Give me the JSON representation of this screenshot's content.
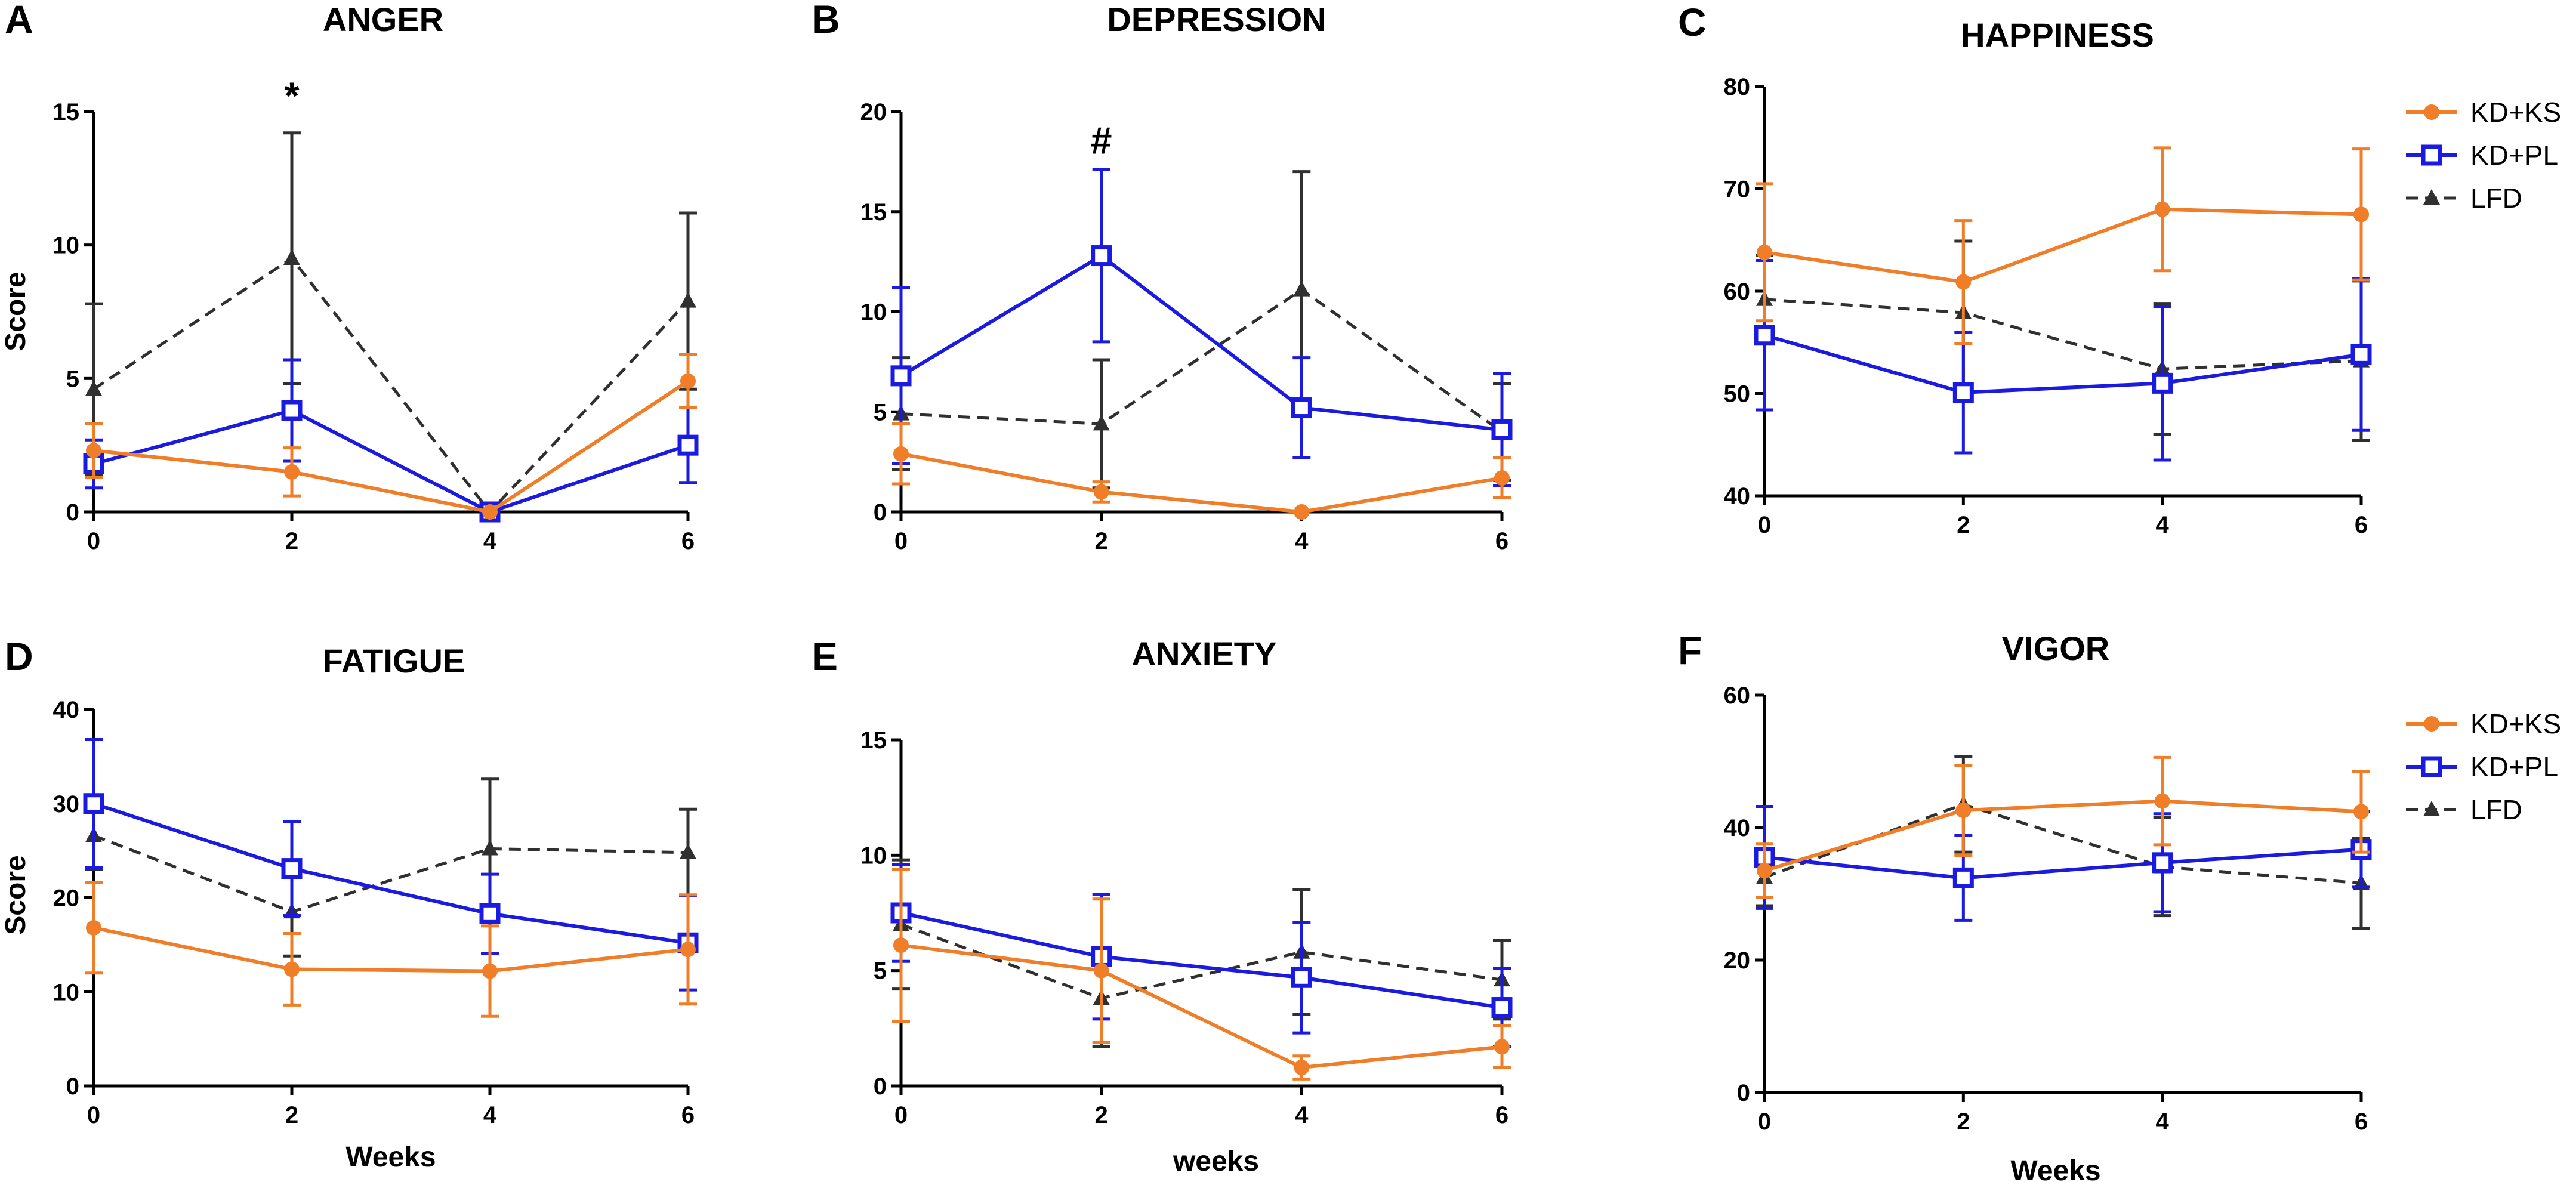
{
  "colors": {
    "KD+KS": "#f07d27",
    "KD+PL": "#1a1ae0",
    "LFD": "#303030"
  },
  "chart_data": [
    {
      "id": "A",
      "letter": "A",
      "type": "line",
      "title": "ANGER",
      "ylabel": "Score",
      "xlabel": "",
      "x": [
        0,
        2,
        4,
        6
      ],
      "xticks": [
        0,
        2,
        4,
        6
      ],
      "ylim": [
        0,
        15
      ],
      "yticks": [
        0,
        5,
        10,
        15
      ],
      "legend": [],
      "annotation": {
        "text": "*",
        "x": 2,
        "y": 15.1
      },
      "series": [
        {
          "name": "KD+KS",
          "values": [
            2.3,
            1.5,
            0,
            4.9
          ],
          "errors": [
            1.0,
            0.9,
            0,
            1.0
          ]
        },
        {
          "name": "KD+PL",
          "values": [
            1.8,
            3.8,
            0,
            2.5
          ],
          "errors": [
            0.9,
            1.9,
            0,
            1.4
          ]
        },
        {
          "name": "LFD",
          "values": [
            4.6,
            9.5,
            0,
            7.9
          ],
          "errors": [
            3.2,
            4.7,
            0,
            3.3
          ]
        }
      ]
    },
    {
      "id": "B",
      "letter": "B",
      "type": "line",
      "title": "DEPRESSION",
      "ylabel": "",
      "xlabel": "",
      "x": [
        0,
        2,
        4,
        6
      ],
      "xticks": [
        0,
        2,
        4,
        6
      ],
      "ylim": [
        0,
        20
      ],
      "yticks": [
        0,
        5,
        10,
        15,
        20
      ],
      "legend": [],
      "annotation": {
        "text": "#",
        "x": 2,
        "y": 17.9
      },
      "series": [
        {
          "name": "KD+KS",
          "values": [
            2.9,
            1.0,
            0,
            1.7
          ],
          "errors": [
            1.5,
            0.5,
            0,
            1.0
          ]
        },
        {
          "name": "KD+PL",
          "values": [
            6.8,
            12.8,
            5.2,
            4.1
          ],
          "errors": [
            4.4,
            4.3,
            2.5,
            2.8
          ]
        },
        {
          "name": "LFD",
          "values": [
            4.9,
            4.4,
            11.1,
            4.0
          ],
          "errors": [
            2.8,
            3.2,
            5.9,
            2.4
          ]
        }
      ]
    },
    {
      "id": "C",
      "letter": "C",
      "type": "line",
      "title": "HAPPINESS",
      "ylabel": "",
      "xlabel": "",
      "x": [
        0,
        2,
        4,
        6
      ],
      "xticks": [
        0,
        2,
        4,
        6
      ],
      "ylim": [
        40,
        80
      ],
      "yticks": [
        40,
        50,
        60,
        70,
        80
      ],
      "legend": [
        "KD+KS",
        "KD+PL",
        "LFD"
      ],
      "series": [
        {
          "name": "KD+KS",
          "values": [
            63.8,
            60.9,
            68.0,
            67.5
          ],
          "errors": [
            6.7,
            6.0,
            6.0,
            6.4
          ]
        },
        {
          "name": "KD+PL",
          "values": [
            55.7,
            50.1,
            51.0,
            53.8
          ],
          "errors": [
            7.3,
            5.9,
            7.5,
            7.4
          ]
        },
        {
          "name": "LFD",
          "values": [
            59.2,
            57.9,
            52.4,
            53.2
          ],
          "errors": [
            4.3,
            7.0,
            6.4,
            7.8
          ]
        }
      ]
    },
    {
      "id": "D",
      "letter": "D",
      "type": "line",
      "title": "FATIGUE",
      "ylabel": "Score",
      "xlabel": "Weeks",
      "x": [
        0,
        2,
        4,
        6
      ],
      "xticks": [
        0,
        2,
        4,
        6
      ],
      "ylim": [
        0,
        40
      ],
      "yticks": [
        0,
        10,
        20,
        30,
        40
      ],
      "legend": [],
      "series": [
        {
          "name": "KD+KS",
          "values": [
            16.8,
            12.4,
            12.2,
            14.5
          ],
          "errors": [
            4.8,
            3.8,
            4.8,
            5.8
          ]
        },
        {
          "name": "KD+PL",
          "values": [
            30.0,
            23.1,
            18.3,
            15.2
          ],
          "errors": [
            6.8,
            5.0,
            4.2,
            5.0
          ]
        },
        {
          "name": "LFD",
          "values": [
            26.6,
            18.5,
            25.2,
            24.8
          ],
          "errors": [
            3.6,
            4.7,
            7.4,
            4.6
          ]
        }
      ]
    },
    {
      "id": "E",
      "letter": "E",
      "type": "line",
      "title": "ANXIETY",
      "ylabel": "",
      "xlabel": "weeks",
      "x": [
        0,
        2,
        4,
        6
      ],
      "xticks": [
        0,
        2,
        4,
        6
      ],
      "ylim": [
        0,
        15
      ],
      "yticks": [
        0,
        5,
        10,
        15
      ],
      "legend": [],
      "series": [
        {
          "name": "KD+KS",
          "values": [
            6.1,
            5.0,
            0.8,
            1.7
          ],
          "errors": [
            3.3,
            3.1,
            0.5,
            0.9
          ]
        },
        {
          "name": "KD+PL",
          "values": [
            7.5,
            5.6,
            4.7,
            3.4
          ],
          "errors": [
            2.1,
            2.7,
            2.4,
            1.7
          ]
        },
        {
          "name": "LFD",
          "values": [
            7.0,
            3.8,
            5.8,
            4.6
          ],
          "errors": [
            2.8,
            2.1,
            2.7,
            1.7
          ]
        }
      ]
    },
    {
      "id": "F",
      "letter": "F",
      "type": "line",
      "title": "VIGOR",
      "ylabel": "",
      "xlabel": "Weeks",
      "x": [
        0,
        2,
        4,
        6
      ],
      "xticks": [
        0,
        2,
        4,
        6
      ],
      "ylim": [
        0,
        60
      ],
      "yticks": [
        0,
        20,
        40,
        60
      ],
      "legend": [
        "KD+KS",
        "KD+PL",
        "LFD"
      ],
      "series": [
        {
          "name": "KD+KS",
          "values": [
            33.5,
            42.6,
            44.0,
            42.4
          ],
          "errors": [
            4.0,
            6.8,
            6.6,
            6.1
          ]
        },
        {
          "name": "KD+PL",
          "values": [
            35.5,
            32.4,
            34.7,
            36.7
          ],
          "errors": [
            7.7,
            6.4,
            7.4,
            5.7
          ]
        },
        {
          "name": "LFD",
          "values": [
            32.5,
            43.5,
            34.1,
            31.6
          ],
          "errors": [
            4.3,
            7.2,
            7.4,
            6.8
          ]
        }
      ]
    }
  ]
}
